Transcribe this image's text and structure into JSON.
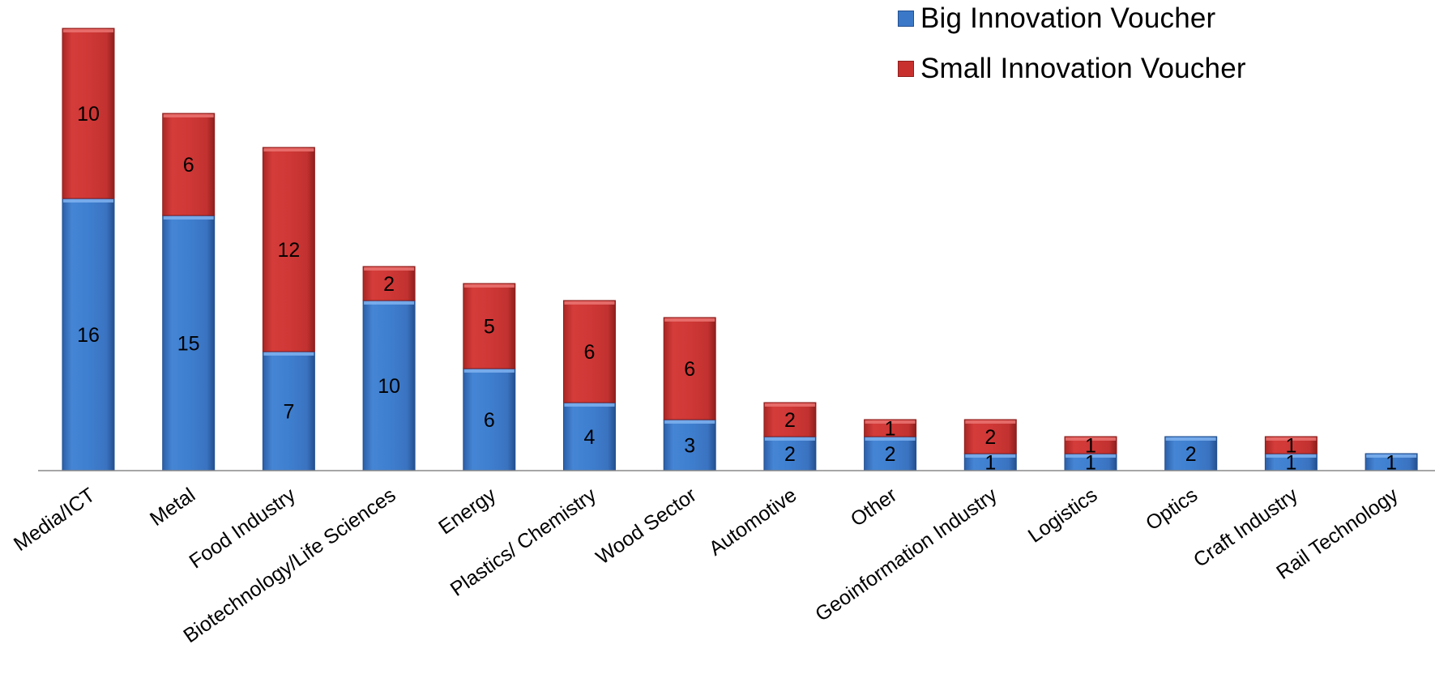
{
  "chart_data": {
    "type": "bar",
    "stacked": true,
    "categories": [
      "Media/ICT",
      "Metal",
      "Food Industry",
      "Biotechnology/Life Sciences",
      "Energy",
      "Plastics/ Chemistry",
      "Wood Sector",
      "Automotive",
      "Other",
      "Geoinformation Industry",
      "Logistics",
      "Optics",
      "Craft Industry",
      "Rail Technology"
    ],
    "series": [
      {
        "name": "Big Innovation Voucher",
        "color": "#3b78c8",
        "values": [
          16,
          15,
          7,
          10,
          6,
          4,
          3,
          2,
          2,
          1,
          1,
          2,
          1,
          1
        ]
      },
      {
        "name": "Small Innovation Voucher",
        "color": "#c8302e",
        "values": [
          10,
          6,
          12,
          2,
          5,
          6,
          6,
          2,
          1,
          2,
          1,
          0,
          1,
          0
        ]
      }
    ],
    "title": "",
    "xlabel": "",
    "ylabel": "",
    "y_axis_visible": false,
    "grid": false,
    "legend_position": "top-right",
    "data_labels": true
  }
}
